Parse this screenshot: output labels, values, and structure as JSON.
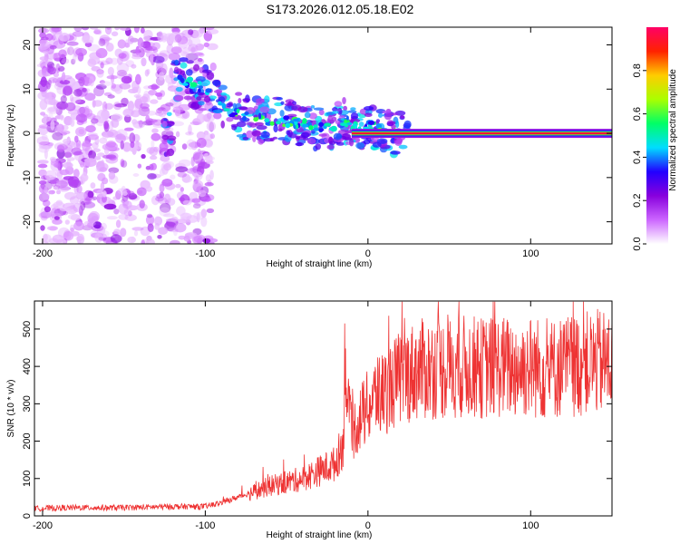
{
  "title": "S173.2026.012.05.18.E02",
  "chart_data": [
    {
      "type": "heatmap",
      "title": "S173.2026.012.05.18.E02",
      "xlabel": "Height of straight line (km)",
      "ylabel": "Frequency (Hz)",
      "xlim": [
        -205,
        150
      ],
      "ylim": [
        -25,
        24
      ],
      "xticks": [
        -200,
        -100,
        0,
        100
      ],
      "xtick_labels": [
        "-200",
        "-100",
        "0",
        "100"
      ],
      "yticks": [
        -20,
        -10,
        0,
        10,
        20
      ],
      "ytick_labels": [
        "-20",
        "-10",
        "0",
        "10",
        "20"
      ],
      "colorbar": {
        "label": "Normalized spectral amplitude",
        "range": [
          0.0,
          1.0
        ],
        "ticks": [
          0.0,
          0.2,
          0.4,
          0.6,
          0.8
        ],
        "tick_labels": [
          "0.0",
          "0.2",
          "0.4",
          "0.6",
          "0.8"
        ],
        "colors": [
          "#ffffff",
          "#cc66ff",
          "#8800dd",
          "#2200ff",
          "#00ddff",
          "#00ff66",
          "#aaff00",
          "#ffcc00",
          "#ff2200",
          "#ff0066"
        ]
      },
      "features": [
        {
          "description_x": [
            -200,
            -120
          ],
          "description_y": [
            -25,
            24
          ],
          "level": 0.15
        },
        {
          "ridge_x": [
            -120,
            -100,
            -85,
            -70,
            -55,
            -40,
            -25,
            -15,
            -5,
            0,
            10,
            20,
            150
          ],
          "ridge_y": [
            13,
            10,
            5,
            3,
            3,
            2,
            1,
            3,
            1,
            2,
            0.5,
            0,
            0
          ]
        },
        {
          "carrier_x": [
            0,
            150
          ],
          "carrier_y": 0,
          "level": 0.95
        }
      ]
    },
    {
      "type": "line",
      "xlabel": "Height of straight line (km)",
      "ylabel": "SNR (10 * v/v)",
      "xlim": [
        -205,
        150
      ],
      "ylim": [
        0,
        575
      ],
      "xticks": [
        -200,
        -100,
        0,
        100
      ],
      "xtick_labels": [
        "-200",
        "-100",
        "0",
        "100"
      ],
      "yticks": [
        0,
        100,
        200,
        300,
        400,
        500
      ],
      "ytick_labels": [
        "0",
        "100",
        "200",
        "300",
        "400",
        "500"
      ],
      "series": [
        {
          "name": "SNR",
          "color": "#ee3333",
          "x": [
            -205,
            -180,
            -150,
            -120,
            -100,
            -90,
            -80,
            -70,
            -60,
            -50,
            -40,
            -30,
            -25,
            -20,
            -15,
            -14,
            -13,
            -10,
            -5,
            0,
            5,
            10,
            15,
            20,
            25,
            30,
            40,
            50,
            60,
            70,
            80,
            90,
            100,
            110,
            120,
            130,
            140,
            150
          ],
          "y": [
            20,
            22,
            22,
            25,
            25,
            35,
            50,
            65,
            80,
            90,
            100,
            120,
            130,
            140,
            200,
            500,
            300,
            220,
            260,
            290,
            320,
            330,
            350,
            370,
            380,
            390,
            395,
            395,
            400,
            395,
            400,
            395,
            400,
            390,
            400,
            405,
            410,
            410
          ]
        }
      ]
    }
  ]
}
